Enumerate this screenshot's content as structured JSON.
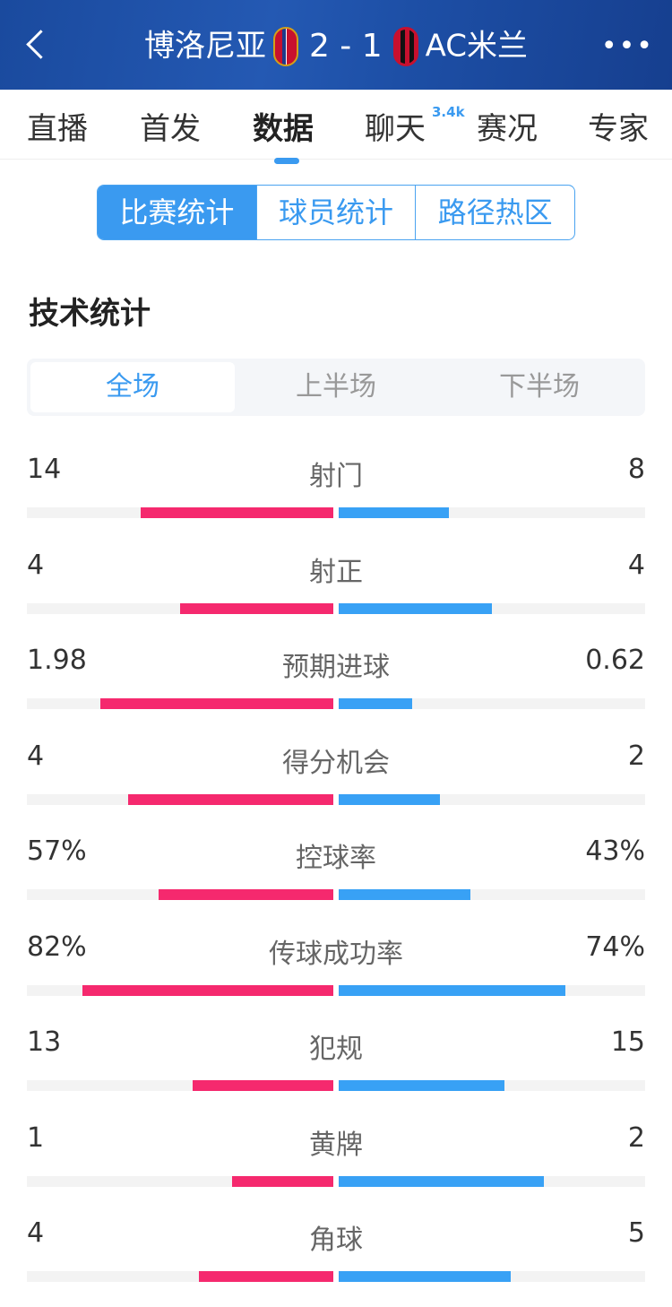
{
  "header": {
    "home_team": "博洛尼亚",
    "score": "2 - 1",
    "away_team": "AC米兰",
    "back_icon": "chevron-left-icon",
    "more_icon": "more-dots-icon",
    "home_crest": "bologna-crest",
    "away_crest": "ac-milan-crest"
  },
  "nav_tabs": [
    {
      "label": "直播"
    },
    {
      "label": "首发"
    },
    {
      "label": "数据",
      "active": true
    },
    {
      "label": "聊天",
      "badge": "3.4k"
    },
    {
      "label": "赛况"
    },
    {
      "label": "专家"
    }
  ],
  "segments": [
    {
      "label": "比赛统计",
      "active": true
    },
    {
      "label": "球员统计"
    },
    {
      "label": "路径热区"
    }
  ],
  "section_title": "技术统计",
  "periods": [
    {
      "label": "全场",
      "active": true
    },
    {
      "label": "上半场"
    },
    {
      "label": "下半场"
    }
  ],
  "colors": {
    "home": "#f5296e",
    "away": "#38a1f5",
    "accent": "#3a9af0"
  },
  "stats": [
    {
      "label": "射门",
      "home": "14",
      "away": "8",
      "home_fill": 0.63,
      "away_fill": 0.36
    },
    {
      "label": "射正",
      "home": "4",
      "away": "4",
      "home_fill": 0.5,
      "away_fill": 0.5
    },
    {
      "label": "预期进球",
      "home": "1.98",
      "away": "0.62",
      "home_fill": 0.76,
      "away_fill": 0.24
    },
    {
      "label": "得分机会",
      "home": "4",
      "away": "2",
      "home_fill": 0.67,
      "away_fill": 0.33
    },
    {
      "label": "控球率",
      "home": "57%",
      "away": "43%",
      "home_fill": 0.57,
      "away_fill": 0.43
    },
    {
      "label": "传球成功率",
      "home": "82%",
      "away": "74%",
      "home_fill": 0.82,
      "away_fill": 0.74
    },
    {
      "label": "犯规",
      "home": "13",
      "away": "15",
      "home_fill": 0.46,
      "away_fill": 0.54
    },
    {
      "label": "黄牌",
      "home": "1",
      "away": "2",
      "home_fill": 0.33,
      "away_fill": 0.67
    },
    {
      "label": "角球",
      "home": "4",
      "away": "5",
      "home_fill": 0.44,
      "away_fill": 0.56
    }
  ]
}
